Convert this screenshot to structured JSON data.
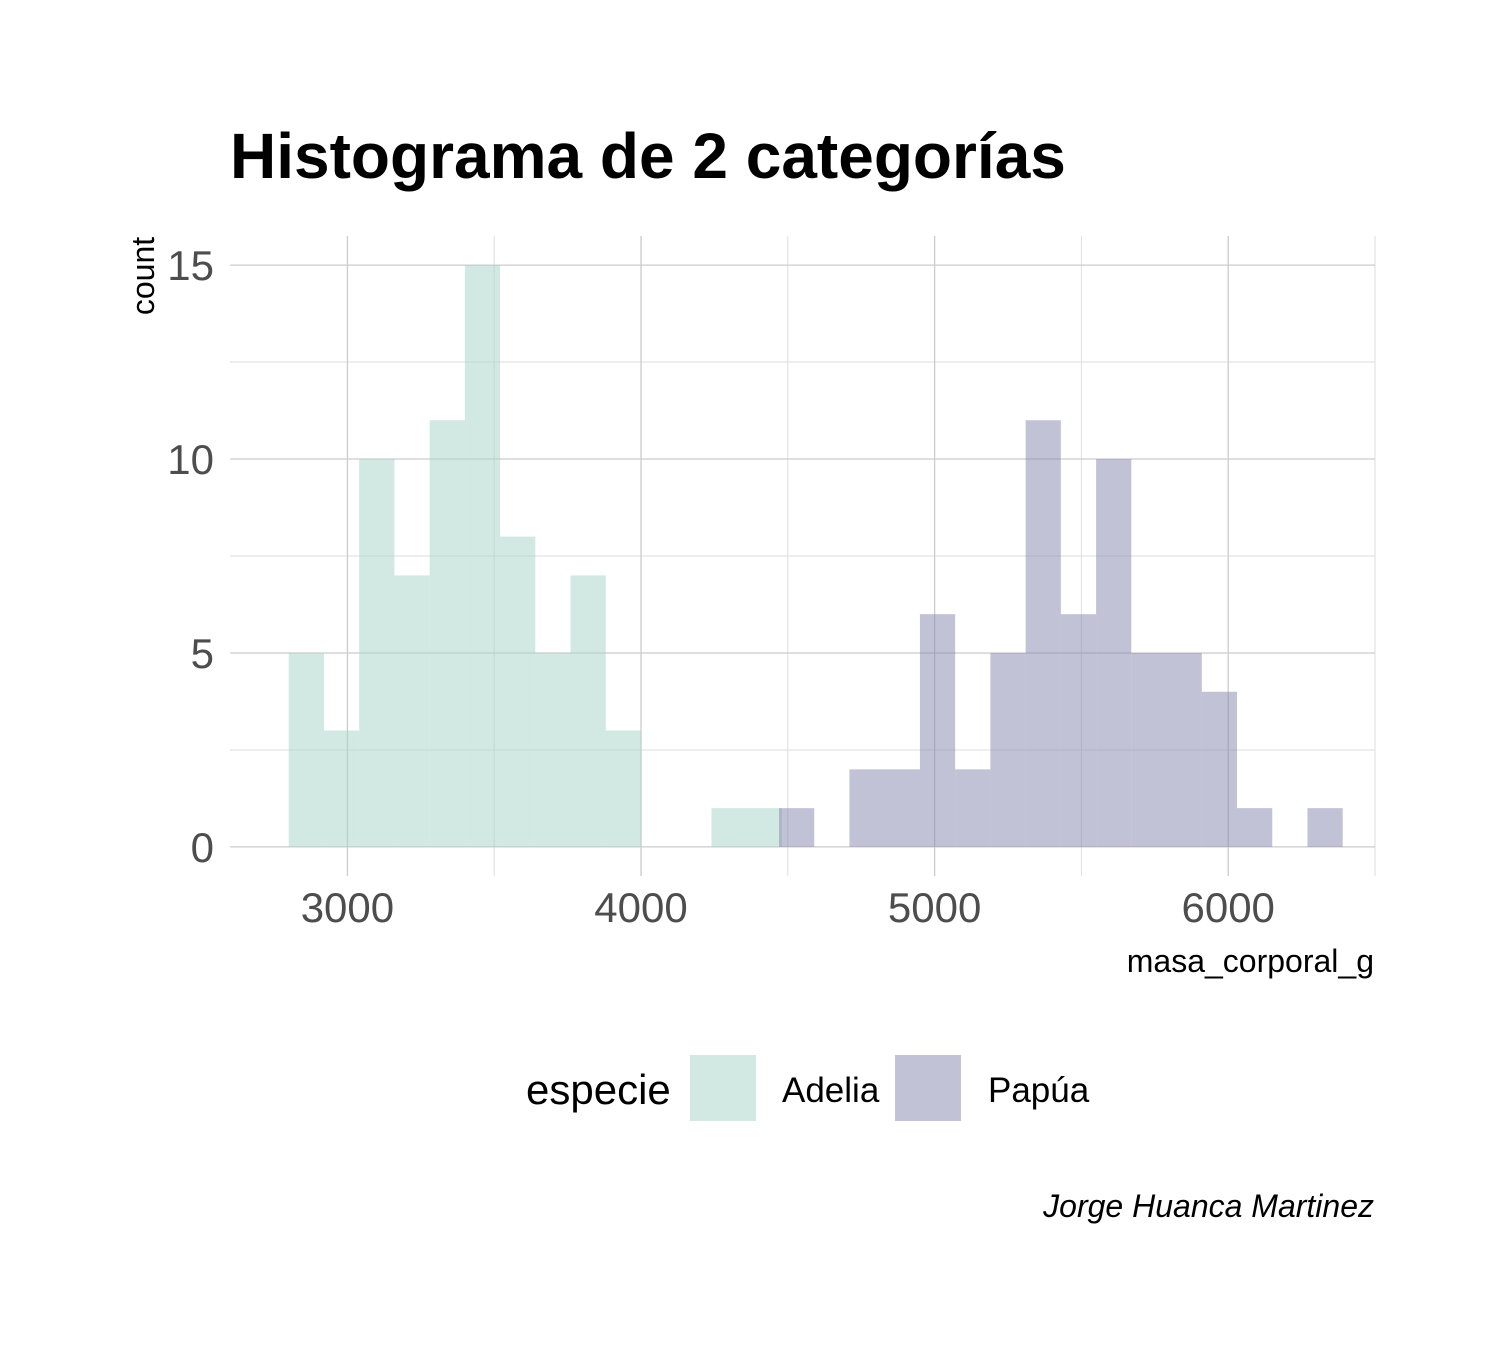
{
  "chart_data": {
    "type": "histogram",
    "title": "Histograma de 2 categorías",
    "xlabel": "masa_corporal_g",
    "ylabel": "count",
    "caption": "Jorge Huanca Martinez",
    "xlim": [
      2600,
      6500
    ],
    "ylim": [
      -0.75,
      15.75
    ],
    "x_ticks": [
      3000,
      4000,
      5000,
      6000
    ],
    "x_minor_ticks": [
      3500,
      4500,
      5500,
      6500
    ],
    "y_ticks": [
      0,
      5,
      10,
      15
    ],
    "y_minor_ticks": [
      2.5,
      7.5,
      12.5
    ],
    "grid": true,
    "legend_position": "bottom",
    "legend_title": "especie",
    "series": [
      {
        "name": "Adelia",
        "color": "#a4d3c5",
        "bins": [
          {
            "x0": 2800,
            "x1": 2920,
            "count": 5
          },
          {
            "x0": 2920,
            "x1": 3040,
            "count": 3
          },
          {
            "x0": 3040,
            "x1": 3160,
            "count": 10
          },
          {
            "x0": 3160,
            "x1": 3280,
            "count": 7
          },
          {
            "x0": 3280,
            "x1": 3400,
            "count": 11
          },
          {
            "x0": 3400,
            "x1": 3520,
            "count": 15
          },
          {
            "x0": 3520,
            "x1": 3640,
            "count": 8
          },
          {
            "x0": 3640,
            "x1": 3760,
            "count": 5
          },
          {
            "x0": 3760,
            "x1": 3880,
            "count": 7
          },
          {
            "x0": 3880,
            "x1": 4000,
            "count": 3
          },
          {
            "x0": 4240,
            "x1": 4480,
            "count": 1
          }
        ]
      },
      {
        "name": "Papúa",
        "color": "#8686ad",
        "bins": [
          {
            "x0": 4470,
            "x1": 4590,
            "count": 1
          },
          {
            "x0": 4710,
            "x1": 4950,
            "count": 2
          },
          {
            "x0": 4950,
            "x1": 5070,
            "count": 6
          },
          {
            "x0": 5070,
            "x1": 5190,
            "count": 2
          },
          {
            "x0": 5190,
            "x1": 5310,
            "count": 5
          },
          {
            "x0": 5310,
            "x1": 5430,
            "count": 11
          },
          {
            "x0": 5430,
            "x1": 5550,
            "count": 6
          },
          {
            "x0": 5550,
            "x1": 5670,
            "count": 10
          },
          {
            "x0": 5670,
            "x1": 5910,
            "count": 5
          },
          {
            "x0": 5910,
            "x1": 6030,
            "count": 4
          },
          {
            "x0": 6030,
            "x1": 6150,
            "count": 1
          },
          {
            "x0": 6270,
            "x1": 6390,
            "count": 1
          }
        ]
      }
    ]
  }
}
